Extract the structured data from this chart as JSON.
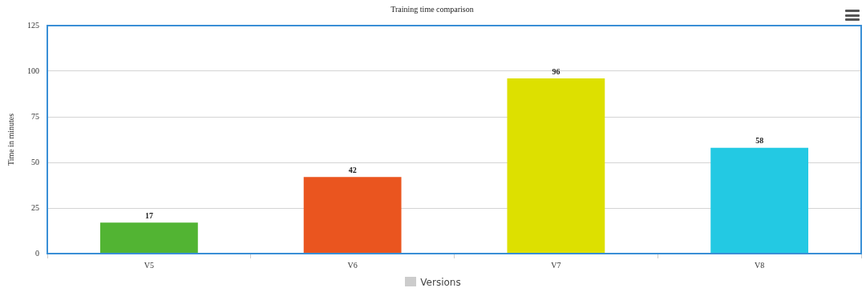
{
  "chart_data": {
    "type": "bar",
    "title": "Training time comparison",
    "ylabel": "Time in minutes",
    "categories": [
      "V5",
      "V6",
      "V7",
      "V8"
    ],
    "series": [
      {
        "name": "Versions",
        "color": "#cccccc",
        "colors": [
          "#52b433",
          "#ea551f",
          "#dde000",
          "#23c9e3"
        ],
        "values": [
          17,
          42,
          96,
          58
        ]
      }
    ],
    "ylim": [
      0,
      125
    ],
    "yticks": [
      0,
      25,
      50,
      75,
      100,
      125
    ],
    "grid": "y",
    "legend": "bottom",
    "data_labels": true
  }
}
